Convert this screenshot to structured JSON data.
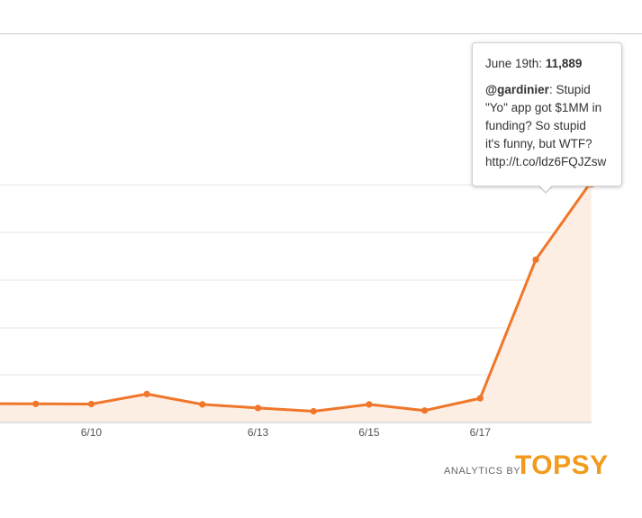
{
  "colors": {
    "line": "#f0762a",
    "area_fill": "#fdeee4",
    "gridline": "#e6e6e6",
    "axis": "#c9c9c9",
    "brand": "#f39a1b"
  },
  "chart_data": {
    "type": "area",
    "title": "",
    "xlabel": "",
    "ylabel": "",
    "grid": true,
    "x_tick_labels": [
      "6/10",
      "6/13",
      "6/15",
      "6/17"
    ],
    "x": [
      "6/8",
      "6/9",
      "6/10",
      "6/11",
      "6/12",
      "6/13",
      "6/14",
      "6/15",
      "6/16",
      "6/17",
      "6/18",
      "6/19"
    ],
    "series": [
      {
        "values": [
          280,
          270,
          260,
          780,
          240,
          50,
          -120,
          240,
          -80,
          560,
          7800,
          11889
        ]
      }
    ],
    "highlight": {
      "index": 11,
      "date_label": "June 19th:",
      "value_label": "11,889",
      "tweet_handle": "@gardinier",
      "tweet_text_lines": [
        ": Stupid",
        "\"Yo\" app got $1MM in",
        "funding? So stupid",
        "it's funny, but WTF?",
        "http://t.co/ldz6FQJZsw"
      ]
    }
  },
  "branding": {
    "prefix": "ANALYTICS BY",
    "logo": "TOPSY"
  }
}
